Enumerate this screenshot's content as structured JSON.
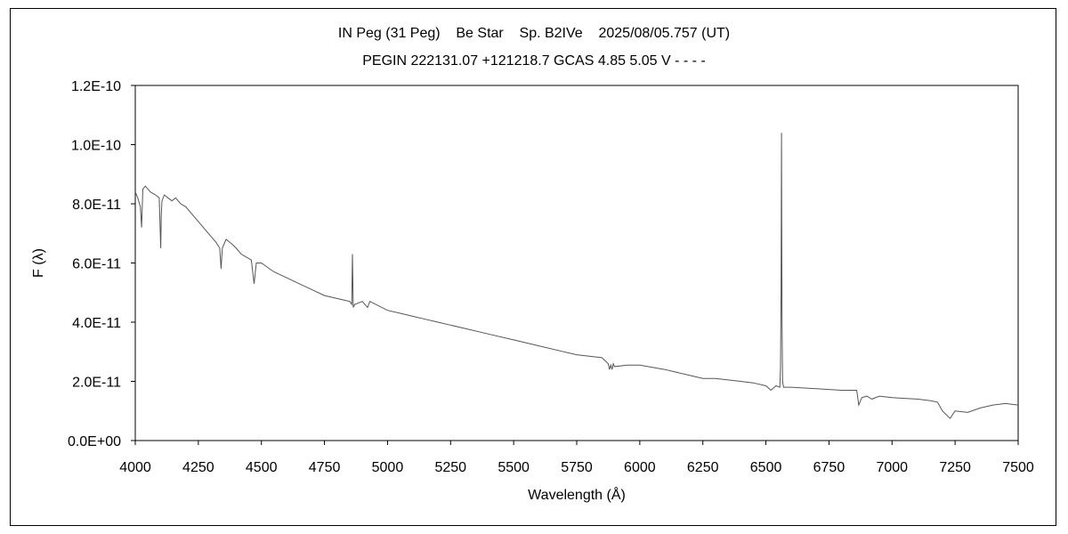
{
  "chart_data": {
    "type": "line",
    "title": "IN Peg (31 Peg)    Be Star    Sp. B2IVe    2025/08/05.757 (UT)",
    "subtitle": "PEGIN 222131.07 +121218.7 GCAS 4.85 5.05 V - - - -",
    "xlabel": "Wavelength (Å)",
    "ylabel": "F (λ)",
    "xlim": [
      4000,
      7500
    ],
    "ylim": [
      0,
      1.2e-10
    ],
    "x_ticks": [
      "4000",
      "4250",
      "4500",
      "4750",
      "5000",
      "5250",
      "5500",
      "5750",
      "6000",
      "6250",
      "6500",
      "6750",
      "7000",
      "7250",
      "7500"
    ],
    "y_ticks": [
      "0.0E+00",
      "2.0E-11",
      "4.0E-11",
      "6.0E-11",
      "8.0E-11",
      "1.0E-10",
      "1.2E-10"
    ],
    "grid": false,
    "line_color": "#555555",
    "series": [
      {
        "x": [
          4000,
          4010,
          4020,
          4025,
          4030,
          4040,
          4050,
          4060,
          4080,
          4095,
          4101,
          4103,
          4106,
          4115,
          4130,
          4145,
          4160,
          4180,
          4200,
          4230,
          4260,
          4290,
          4320,
          4335,
          4340,
          4345,
          4360,
          4388,
          4400,
          4420,
          4440,
          4460,
          4471,
          4480,
          4500,
          4550,
          4600,
          4650,
          4700,
          4750,
          4800,
          4850,
          4858,
          4861,
          4864,
          4870,
          4900,
          4921,
          4930,
          5000,
          5050,
          5100,
          5150,
          5200,
          5250,
          5300,
          5400,
          5500,
          5600,
          5700,
          5750,
          5800,
          5850,
          5875,
          5880,
          5885,
          5890,
          5895,
          5900,
          5950,
          6000,
          6100,
          6200,
          6250,
          6300,
          6400,
          6450,
          6500,
          6520,
          6540,
          6555,
          6558,
          6560,
          6562,
          6563,
          6564,
          6566,
          6570,
          6600,
          6700,
          6800,
          6860,
          6868,
          6880,
          6900,
          6920,
          6950,
          7000,
          7100,
          7150,
          7180,
          7200,
          7230,
          7250,
          7300,
          7350,
          7400,
          7450,
          7500
        ],
        "values": [
          8.4e-11,
          8.2e-11,
          7.9e-11,
          7.2e-11,
          8.5e-11,
          8.6e-11,
          8.5e-11,
          8.4e-11,
          8.3e-11,
          8.2e-11,
          6.5e-11,
          7.6e-11,
          8.1e-11,
          8.3e-11,
          8.2e-11,
          8.1e-11,
          8.2e-11,
          8e-11,
          7.9e-11,
          7.6e-11,
          7.3e-11,
          7e-11,
          6.7e-11,
          6.5e-11,
          5.8e-11,
          6.5e-11,
          6.8e-11,
          6.6e-11,
          6.5e-11,
          6.3e-11,
          6.2e-11,
          6.1e-11,
          5.3e-11,
          6e-11,
          6e-11,
          5.7e-11,
          5.5e-11,
          5.3e-11,
          5.1e-11,
          4.9e-11,
          4.8e-11,
          4.7e-11,
          4.6e-11,
          6.3e-11,
          4.5e-11,
          4.6e-11,
          4.7e-11,
          4.5e-11,
          4.7e-11,
          4.4e-11,
          4.3e-11,
          4.2e-11,
          4.1e-11,
          4e-11,
          3.9e-11,
          3.8e-11,
          3.6e-11,
          3.4e-11,
          3.2e-11,
          3e-11,
          2.9e-11,
          2.85e-11,
          2.8e-11,
          2.6e-11,
          2.4e-11,
          2.55e-11,
          2.4e-11,
          2.6e-11,
          2.5e-11,
          2.55e-11,
          2.55e-11,
          2.4e-11,
          2.2e-11,
          2.1e-11,
          2.1e-11,
          2e-11,
          1.95e-11,
          1.85e-11,
          1.7e-11,
          1.85e-11,
          1.8e-11,
          2.5e-11,
          5e-11,
          1.04e-10,
          6.8e-11,
          4e-11,
          2e-11,
          1.8e-11,
          1.8e-11,
          1.75e-11,
          1.7e-11,
          1.7e-11,
          1.2e-11,
          1.45e-11,
          1.5e-11,
          1.4e-11,
          1.5e-11,
          1.45e-11,
          1.4e-11,
          1.35e-11,
          1.3e-11,
          1e-11,
          7.5e-12,
          1e-11,
          9.5e-12,
          1.1e-11,
          1.2e-11,
          1.25e-11,
          1.2e-11
        ]
      }
    ]
  }
}
